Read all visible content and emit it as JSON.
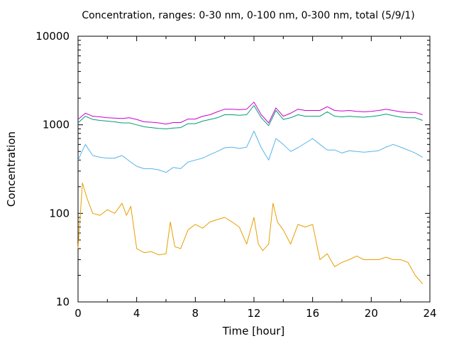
{
  "chart_data": {
    "type": "line",
    "title": "Concentration, ranges: 0-30 nm, 0-100 nm, 0-300 nm, total (5/9/1)",
    "xlabel": "Time [hour]",
    "ylabel": "Concentration",
    "xlim": [
      0,
      24
    ],
    "ylim": [
      10,
      10000
    ],
    "yscale": "log",
    "grid": false,
    "legend": "none",
    "x_ticks": [
      "0",
      "4",
      "8",
      "12",
      "16",
      "20",
      "24"
    ],
    "y_ticks": [
      "10",
      "100",
      "1000",
      "10000"
    ],
    "series": [
      {
        "color": "#cc00cc",
        "x": [
          0,
          0.5,
          1,
          1.5,
          2,
          2.5,
          3,
          3.5,
          4,
          4.5,
          5,
          5.5,
          6,
          6.5,
          7,
          7.5,
          8,
          8.5,
          9,
          9.5,
          10,
          10.5,
          11,
          11.5,
          12,
          12.5,
          13,
          13.5,
          14,
          14.5,
          15,
          15.5,
          16,
          16.5,
          17,
          17.5,
          18,
          18.5,
          19,
          19.5,
          20,
          20.5,
          21,
          21.5,
          22,
          22.5,
          23,
          23.5
        ],
        "y": [
          1150,
          1350,
          1250,
          1230,
          1200,
          1190,
          1180,
          1200,
          1150,
          1080,
          1070,
          1050,
          1020,
          1060,
          1060,
          1160,
          1160,
          1250,
          1300,
          1400,
          1500,
          1500,
          1480,
          1500,
          1800,
          1300,
          1050,
          1550,
          1250,
          1350,
          1500,
          1450,
          1450,
          1450,
          1600,
          1450,
          1430,
          1450,
          1420,
          1400,
          1420,
          1450,
          1500,
          1450,
          1400,
          1380,
          1380,
          1300
        ]
      },
      {
        "color": "#009e73",
        "x": [
          0,
          0.5,
          1,
          1.5,
          2,
          2.5,
          3,
          3.5,
          4,
          4.5,
          5,
          5.5,
          6,
          6.5,
          7,
          7.5,
          8,
          8.5,
          9,
          9.5,
          10,
          10.5,
          11,
          11.5,
          12,
          12.5,
          13,
          13.5,
          14,
          14.5,
          15,
          15.5,
          16,
          16.5,
          17,
          17.5,
          18,
          18.5,
          19,
          19.5,
          20,
          20.5,
          21,
          21.5,
          22,
          22.5,
          23,
          23.5
        ],
        "y": [
          1050,
          1250,
          1150,
          1120,
          1100,
          1080,
          1050,
          1050,
          1000,
          950,
          930,
          910,
          900,
          920,
          930,
          1030,
          1030,
          1100,
          1150,
          1200,
          1300,
          1300,
          1280,
          1300,
          1650,
          1200,
          980,
          1450,
          1150,
          1200,
          1300,
          1250,
          1250,
          1250,
          1400,
          1250,
          1230,
          1250,
          1230,
          1220,
          1240,
          1270,
          1320,
          1270,
          1220,
          1200,
          1200,
          1120
        ]
      },
      {
        "color": "#56b4e9",
        "x": [
          0,
          0.5,
          1,
          1.5,
          2,
          2.5,
          3,
          3.5,
          4,
          4.5,
          5,
          5.5,
          6,
          6.5,
          7,
          7.5,
          8,
          8.5,
          9,
          9.5,
          10,
          10.5,
          11,
          11.5,
          12,
          12.5,
          13,
          13.5,
          14,
          14.5,
          15,
          15.5,
          16,
          16.5,
          17,
          17.5,
          18,
          18.5,
          19,
          19.5,
          20,
          20.5,
          21,
          21.5,
          22,
          22.5,
          23,
          23.5
        ],
        "y": [
          400,
          600,
          450,
          430,
          420,
          420,
          450,
          390,
          340,
          320,
          320,
          310,
          290,
          330,
          320,
          380,
          400,
          420,
          460,
          500,
          550,
          560,
          540,
          560,
          850,
          550,
          400,
          700,
          600,
          500,
          550,
          620,
          700,
          600,
          520,
          520,
          480,
          510,
          500,
          490,
          500,
          510,
          560,
          600,
          560,
          520,
          480,
          430
        ]
      },
      {
        "color": "#e69f00",
        "x": [
          0,
          0.3,
          0.6,
          1,
          1.5,
          2,
          2.5,
          3,
          3.3,
          3.6,
          4,
          4.5,
          5,
          5.5,
          6,
          6.3,
          6.6,
          7,
          7.5,
          8,
          8.5,
          9,
          9.5,
          10,
          10.5,
          11,
          11.5,
          12,
          12.3,
          12.6,
          13,
          13.3,
          13.6,
          14,
          14.5,
          15,
          15.5,
          16,
          16.5,
          17,
          17.5,
          18,
          18.5,
          19,
          19.5,
          20,
          20.5,
          21,
          21.5,
          22,
          22.5,
          23,
          23.5
        ],
        "y": [
          40,
          220,
          150,
          100,
          95,
          110,
          100,
          130,
          95,
          120,
          40,
          36,
          37,
          34,
          35,
          80,
          42,
          40,
          65,
          75,
          68,
          80,
          85,
          90,
          80,
          70,
          45,
          90,
          45,
          38,
          45,
          130,
          80,
          65,
          45,
          75,
          70,
          75,
          30,
          35,
          25,
          28,
          30,
          33,
          30,
          30,
          30,
          32,
          30,
          30,
          28,
          20,
          16
        ]
      }
    ]
  }
}
